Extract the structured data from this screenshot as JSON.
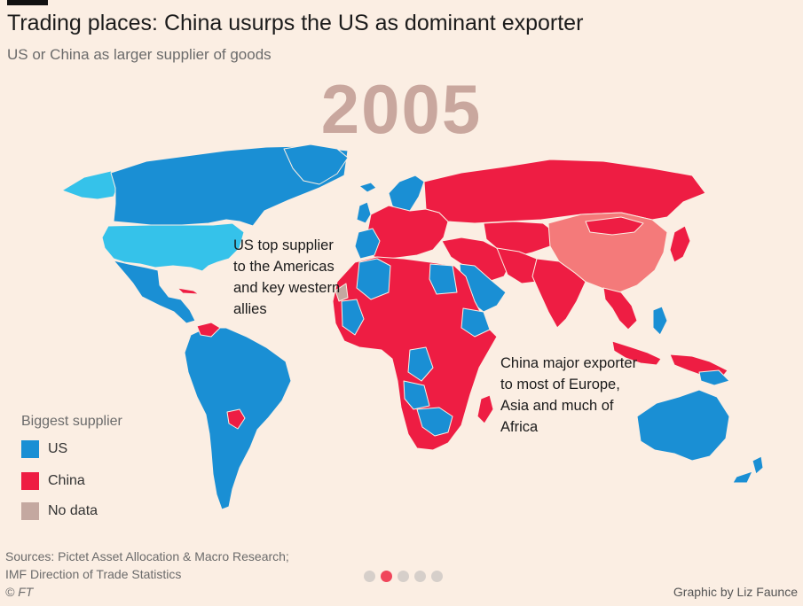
{
  "title": "Trading places: China usurps the US as dominant exporter",
  "subtitle": "US or China as larger supplier of goods",
  "year": "2005",
  "colors": {
    "us": "#1a8fd4",
    "us_light": "#35c2ea",
    "china": "#ee1d43",
    "china_light": "#f47a7a",
    "no_data": "#c4a8a0",
    "background": "#fbeee3",
    "year_text": "#c9a79e"
  },
  "annotations": {
    "us": "US top supplier to the Americas and key western allies",
    "china": "China major exporter to most of Europe, Asia and much of Africa"
  },
  "legend": {
    "title": "Biggest supplier",
    "items": [
      {
        "label": "US",
        "color": "#1a8fd4"
      },
      {
        "label": "China",
        "color": "#ee1d43"
      },
      {
        "label": "No data",
        "color": "#c4a8a0"
      }
    ]
  },
  "sources": {
    "line1": "Sources: Pictet Asset Allocation & Macro Research;",
    "line2": "IMF Direction of Trade Statistics"
  },
  "copyright": "© FT",
  "credit": "Graphic by Liz Faunce",
  "pagination": {
    "total": 5,
    "active_index": 2
  }
}
